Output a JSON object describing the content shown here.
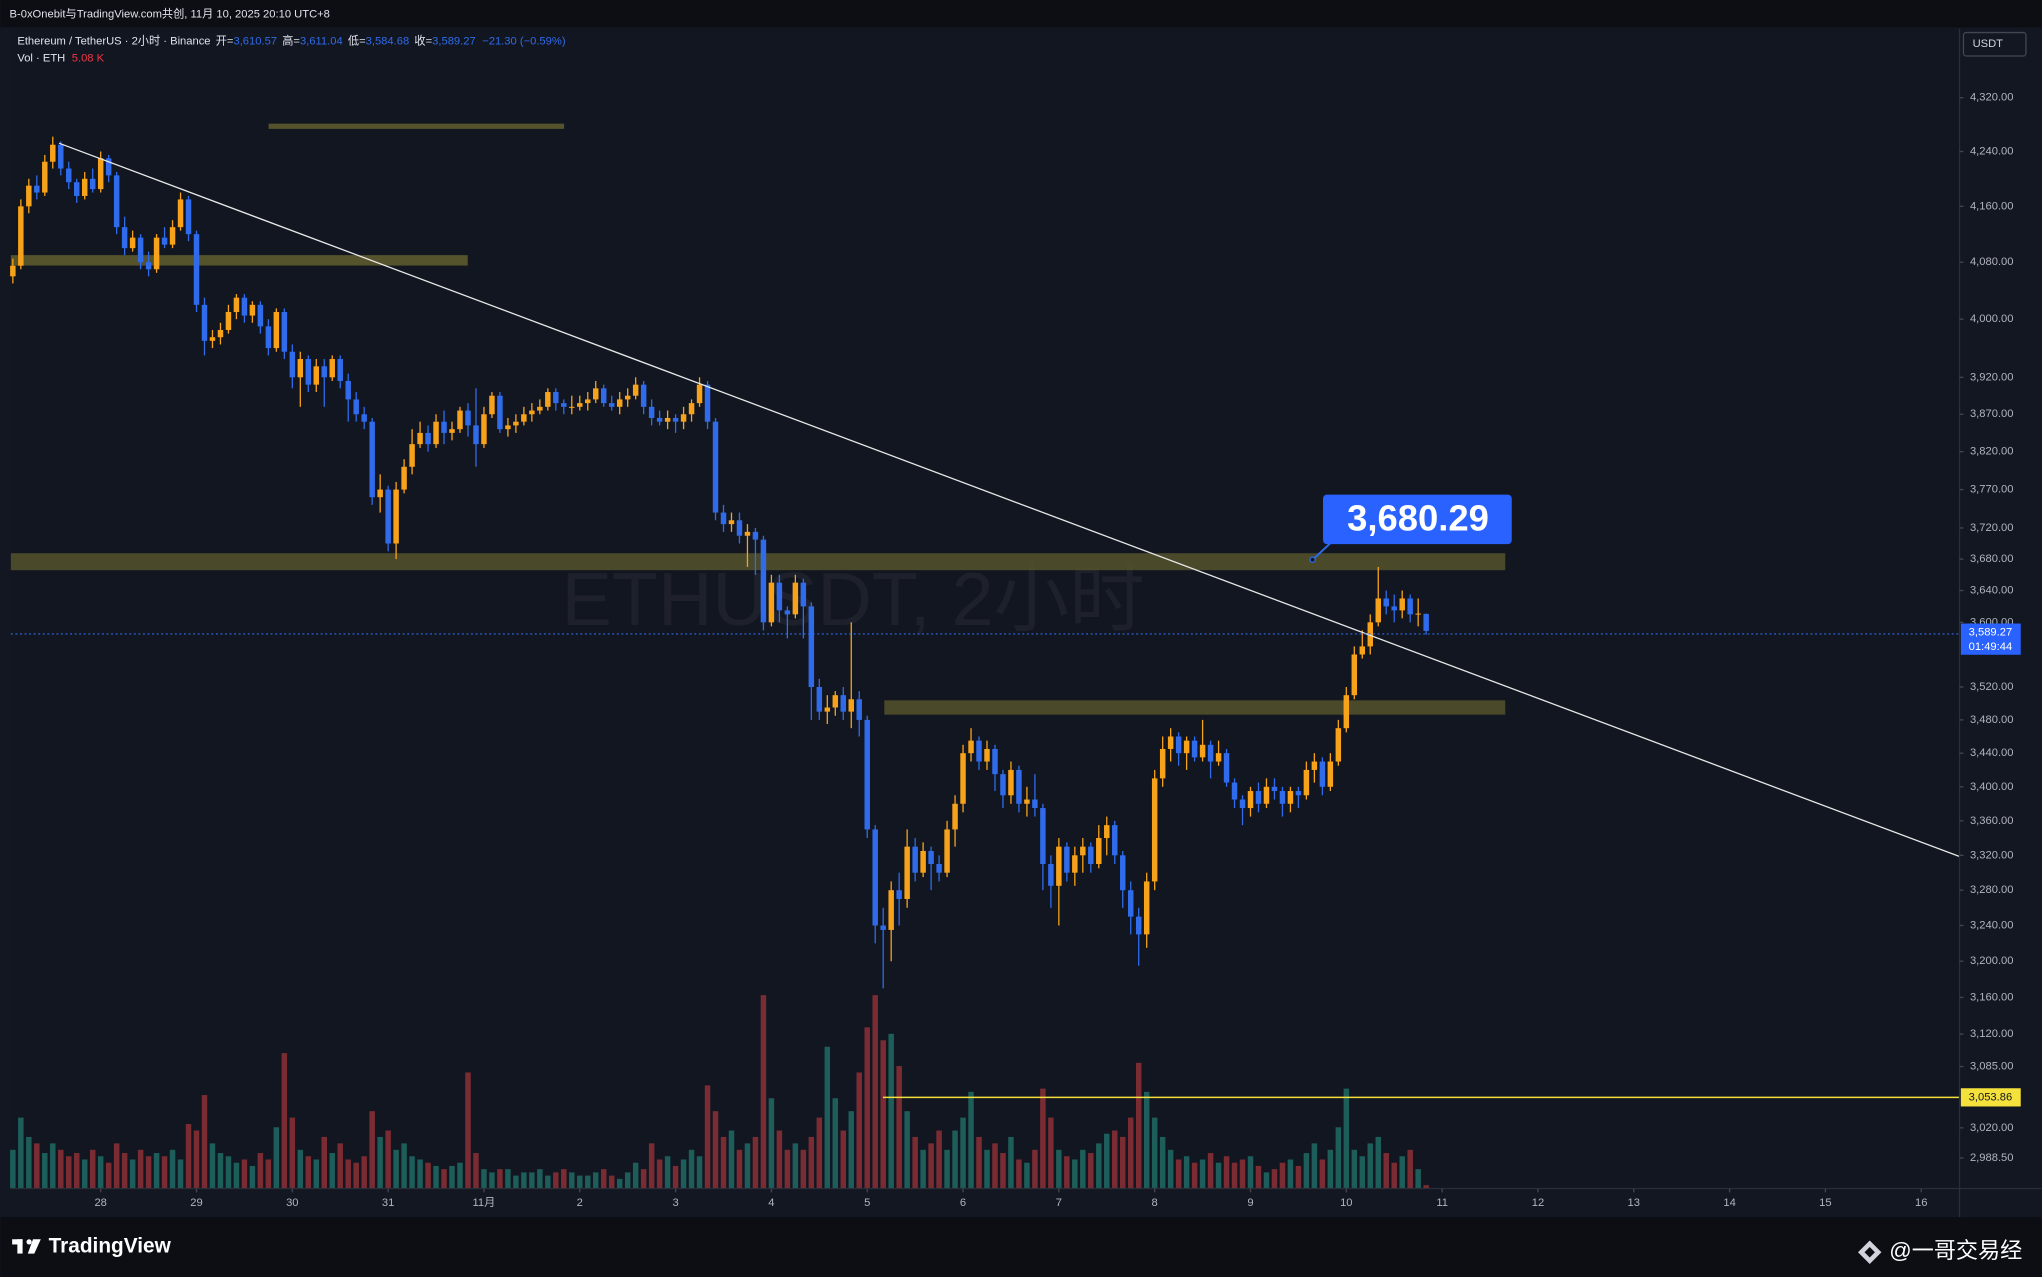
{
  "header": {
    "title": "B-0xOnebit与TradingView.com共创, 11月 10, 2025 20:10 UTC+8"
  },
  "legend": {
    "symbol": "Ethereum / TetherUS · 2小时 · Binance",
    "ohlc": [
      {
        "label": "开=",
        "value": "3,610.57"
      },
      {
        "label": "高=",
        "value": "3,611.04"
      },
      {
        "label": "低=",
        "value": "3,584.68"
      },
      {
        "label": "收=",
        "value": "3,589.27"
      }
    ],
    "change": "−21.30 (−0.59%)",
    "volume_label": "Vol · ETH",
    "volume_value": "5.08 K"
  },
  "annotations": {
    "callout": "3,680.29",
    "line_label": "3,053.86",
    "last_price": "3,589.27",
    "countdown": "01:49:44",
    "currency": "USDT",
    "watermark": "ETHUSDT, 2小时"
  },
  "footer": {
    "brand": "TradingView",
    "author": "@一哥交易经"
  },
  "chart_data": {
    "type": "candlestick",
    "log_scale": true,
    "up_color": "#f7a21b",
    "down_color": "#2f6bea",
    "volume_up_color": "#1d5e5a",
    "volume_down_color": "#7b2c33",
    "xlim": [
      625.5,
      1113.6
    ],
    "xticks": [
      {
        "value": 648,
        "label": "28"
      },
      {
        "value": 672,
        "label": "29"
      },
      {
        "value": 696,
        "label": "30"
      },
      {
        "value": 720,
        "label": "31"
      },
      {
        "value": 744,
        "label": "11月"
      },
      {
        "value": 768,
        "label": "2"
      },
      {
        "value": 792,
        "label": "3"
      },
      {
        "value": 816,
        "label": "4"
      },
      {
        "value": 840,
        "label": "5"
      },
      {
        "value": 864,
        "label": "6"
      },
      {
        "value": 888,
        "label": "7"
      },
      {
        "value": 912,
        "label": "8"
      },
      {
        "value": 936,
        "label": "9"
      },
      {
        "value": 960,
        "label": "10"
      },
      {
        "value": 984,
        "label": "11"
      },
      {
        "value": 1008,
        "label": "12"
      },
      {
        "value": 1032,
        "label": "13"
      },
      {
        "value": 1056,
        "label": "14"
      },
      {
        "value": 1080,
        "label": "15"
      },
      {
        "value": 1104,
        "label": "16"
      }
    ],
    "ylim": [
      2957,
      4425
    ],
    "yticks": [
      {
        "value": 4320,
        "label": "4,320.00"
      },
      {
        "value": 4240,
        "label": "4,240.00"
      },
      {
        "value": 4160,
        "label": "4,160.00"
      },
      {
        "value": 4080,
        "label": "4,080.00"
      },
      {
        "value": 4000,
        "label": "4,000.00"
      },
      {
        "value": 3920,
        "label": "3,920.00"
      },
      {
        "value": 3870,
        "label": "3,870.00"
      },
      {
        "value": 3820,
        "label": "3,820.00"
      },
      {
        "value": 3770,
        "label": "3,770.00"
      },
      {
        "value": 3720,
        "label": "3,720.00"
      },
      {
        "value": 3680,
        "label": "3,680.00"
      },
      {
        "value": 3640,
        "label": "3,640.00"
      },
      {
        "value": 3600,
        "label": "3,600.00"
      },
      {
        "value": 3520,
        "label": "3,520.00"
      },
      {
        "value": 3480,
        "label": "3,480.00"
      },
      {
        "value": 3440,
        "label": "3,440.00"
      },
      {
        "value": 3400,
        "label": "3,400.00"
      },
      {
        "value": 3360,
        "label": "3,360.00"
      },
      {
        "value": 3320,
        "label": "3,320.00"
      },
      {
        "value": 3280,
        "label": "3,280.00"
      },
      {
        "value": 3240,
        "label": "3,240.00"
      },
      {
        "value": 3200,
        "label": "3,200.00"
      },
      {
        "value": 3160,
        "label": "3,160.00"
      },
      {
        "value": 3120,
        "label": "3,120.00"
      },
      {
        "value": 3085,
        "label": "3,085.00"
      },
      {
        "value": 3020,
        "label": "3,020.00"
      },
      {
        "value": 2988.5,
        "label": "2,988.50"
      }
    ],
    "volume_ylim": [
      0,
      1800
    ],
    "x": [
      626,
      628,
      630,
      632,
      634,
      636,
      638,
      640,
      642,
      644,
      646,
      648,
      650,
      652,
      654,
      656,
      658,
      660,
      662,
      664,
      666,
      668,
      670,
      672,
      674,
      676,
      678,
      680,
      682,
      684,
      686,
      688,
      690,
      692,
      694,
      696,
      698,
      700,
      702,
      704,
      706,
      708,
      710,
      712,
      714,
      716,
      718,
      720,
      722,
      724,
      726,
      728,
      730,
      732,
      734,
      736,
      738,
      740,
      742,
      744,
      746,
      748,
      750,
      752,
      754,
      756,
      758,
      760,
      762,
      764,
      766,
      768,
      770,
      772,
      774,
      776,
      778,
      780,
      782,
      784,
      786,
      788,
      790,
      792,
      794,
      796,
      798,
      800,
      802,
      804,
      806,
      808,
      810,
      812,
      814,
      816,
      818,
      820,
      822,
      824,
      826,
      828,
      830,
      832,
      834,
      836,
      838,
      840,
      842,
      844,
      846,
      848,
      850,
      852,
      854,
      856,
      858,
      860,
      862,
      864,
      866,
      868,
      870,
      872,
      874,
      876,
      878,
      880,
      882,
      884,
      886,
      888,
      890,
      892,
      894,
      896,
      898,
      900,
      902,
      904,
      906,
      908,
      910,
      912,
      914,
      916,
      918,
      920,
      922,
      924,
      926,
      928,
      930,
      932,
      934,
      936,
      938,
      940,
      942,
      944,
      946,
      948,
      950,
      952,
      954,
      956,
      958,
      960,
      962,
      964,
      966,
      968,
      970,
      972,
      974,
      976,
      978,
      980
    ],
    "open": [
      4060,
      4075,
      4160,
      4190,
      4180,
      4225,
      4250,
      4215,
      4195,
      4175,
      4200,
      4185,
      4230,
      4205,
      4130,
      4100,
      4115,
      4080,
      4070,
      4115,
      4105,
      4130,
      4170,
      4120,
      4020,
      3970,
      3975,
      3985,
      4010,
      4030,
      4005,
      4020,
      3990,
      3960,
      4010,
      3955,
      3920,
      3945,
      3910,
      3935,
      3920,
      3945,
      3915,
      3890,
      3870,
      3860,
      3760,
      3770,
      3700,
      3770,
      3800,
      3830,
      3845,
      3830,
      3860,
      3845,
      3850,
      3875,
      3855,
      3830,
      3870,
      3895,
      3850,
      3855,
      3860,
      3870,
      3875,
      3880,
      3900,
      3885,
      3880,
      3880,
      3885,
      3890,
      3905,
      3885,
      3880,
      3890,
      3895,
      3910,
      3880,
      3865,
      3860,
      3865,
      3860,
      3870,
      3885,
      3910,
      3860,
      3740,
      3725,
      3730,
      3710,
      3715,
      3705,
      3600,
      3650,
      3615,
      3610,
      3650,
      3620,
      3520,
      3490,
      3495,
      3510,
      3490,
      3505,
      3480,
      3350,
      3240,
      3235,
      3280,
      3270,
      3330,
      3300,
      3325,
      3310,
      3300,
      3350,
      3380,
      3440,
      3455,
      3430,
      3445,
      3415,
      3390,
      3420,
      3380,
      3385,
      3375,
      3310,
      3285,
      3330,
      3300,
      3320,
      3330,
      3310,
      3340,
      3355,
      3320,
      3280,
      3250,
      3230,
      3290,
      3410,
      3445,
      3460,
      3440,
      3455,
      3435,
      3450,
      3430,
      3440,
      3405,
      3385,
      3375,
      3395,
      3380,
      3400,
      3395,
      3380,
      3395,
      3390,
      3420,
      3430,
      3400,
      3430,
      3470,
      3510,
      3560,
      3570,
      3600,
      3630,
      3620,
      3615,
      3630,
      3610,
      3610.57
    ],
    "high": [
      4085,
      4170,
      4200,
      4205,
      4235,
      4262,
      4255,
      4225,
      4200,
      4210,
      4215,
      4240,
      4235,
      4210,
      4145,
      4125,
      4120,
      4095,
      4120,
      4130,
      4140,
      4180,
      4175,
      4125,
      4030,
      3985,
      3995,
      4020,
      4035,
      4035,
      4025,
      4025,
      4000,
      4015,
      4015,
      3965,
      3955,
      3950,
      3945,
      3945,
      3950,
      3950,
      3925,
      3900,
      3880,
      3865,
      3790,
      3775,
      3780,
      3810,
      3850,
      3860,
      3855,
      3870,
      3875,
      3860,
      3880,
      3885,
      3905,
      3880,
      3900,
      3900,
      3865,
      3870,
      3880,
      3885,
      3890,
      3905,
      3905,
      3890,
      3895,
      3895,
      3900,
      3915,
      3910,
      3895,
      3900,
      3905,
      3920,
      3915,
      3890,
      3875,
      3875,
      3870,
      3880,
      3890,
      3920,
      3915,
      3865,
      3750,
      3740,
      3740,
      3725,
      3720,
      3710,
      3660,
      3660,
      3620,
      3660,
      3655,
      3625,
      3530,
      3510,
      3515,
      3520,
      3600,
      3515,
      3485,
      3355,
      3260,
      3290,
      3300,
      3350,
      3340,
      3335,
      3330,
      3320,
      3360,
      3390,
      3450,
      3470,
      3460,
      3455,
      3450,
      3420,
      3430,
      3425,
      3400,
      3415,
      3380,
      3320,
      3340,
      3335,
      3330,
      3340,
      3335,
      3355,
      3365,
      3360,
      3325,
      3290,
      3260,
      3300,
      3420,
      3460,
      3470,
      3465,
      3460,
      3460,
      3480,
      3455,
      3455,
      3445,
      3410,
      3390,
      3400,
      3405,
      3410,
      3410,
      3400,
      3400,
      3400,
      3430,
      3440,
      3435,
      3440,
      3480,
      3520,
      3570,
      3590,
      3610,
      3670,
      3640,
      3635,
      3640,
      3635,
      3630,
      3611.04
    ],
    "low": [
      4050,
      4070,
      4150,
      4170,
      4175,
      4215,
      4205,
      4185,
      4165,
      4170,
      4180,
      4180,
      4195,
      4120,
      4090,
      4095,
      4070,
      4060,
      4065,
      4100,
      4100,
      4125,
      4110,
      4010,
      3950,
      3960,
      3965,
      3980,
      4000,
      3995,
      3995,
      3980,
      3950,
      3955,
      3945,
      3905,
      3880,
      3900,
      3900,
      3880,
      3915,
      3905,
      3860,
      3860,
      3850,
      3750,
      3740,
      3690,
      3680,
      3765,
      3790,
      3825,
      3820,
      3825,
      3830,
      3835,
      3845,
      3840,
      3800,
      3825,
      3865,
      3845,
      3840,
      3845,
      3855,
      3860,
      3870,
      3875,
      3875,
      3870,
      3870,
      3875,
      3875,
      3885,
      3880,
      3875,
      3870,
      3880,
      3890,
      3870,
      3855,
      3855,
      3850,
      3845,
      3850,
      3860,
      3880,
      3850,
      3730,
      3715,
      3715,
      3700,
      3670,
      3660,
      3590,
      3595,
      3600,
      3580,
      3605,
      3580,
      3480,
      3480,
      3475,
      3485,
      3480,
      3470,
      3460,
      3340,
      3220,
      3170,
      3200,
      3240,
      3260,
      3290,
      3295,
      3280,
      3290,
      3295,
      3330,
      3370,
      3430,
      3420,
      3420,
      3395,
      3375,
      3380,
      3370,
      3365,
      3365,
      3280,
      3260,
      3240,
      3290,
      3285,
      3300,
      3300,
      3305,
      3320,
      3310,
      3260,
      3230,
      3195,
      3215,
      3280,
      3400,
      3430,
      3425,
      3420,
      3430,
      3430,
      3410,
      3425,
      3400,
      3375,
      3355,
      3365,
      3370,
      3375,
      3385,
      3365,
      3370,
      3375,
      3385,
      3405,
      3390,
      3395,
      3425,
      3465,
      3505,
      3555,
      3560,
      3595,
      3610,
      3600,
      3605,
      3600,
      3595,
      3584.68
    ],
    "close": [
      4075,
      4160,
      4190,
      4180,
      4225,
      4250,
      4215,
      4195,
      4175,
      4200,
      4185,
      4230,
      4205,
      4130,
      4100,
      4115,
      4080,
      4070,
      4115,
      4105,
      4130,
      4170,
      4120,
      4020,
      3970,
      3975,
      3985,
      4010,
      4030,
      4005,
      4020,
      3990,
      3960,
      4010,
      3955,
      3920,
      3945,
      3910,
      3935,
      3920,
      3945,
      3915,
      3890,
      3870,
      3860,
      3760,
      3770,
      3700,
      3770,
      3800,
      3830,
      3845,
      3830,
      3860,
      3845,
      3850,
      3875,
      3855,
      3830,
      3870,
      3895,
      3850,
      3855,
      3860,
      3870,
      3875,
      3880,
      3900,
      3885,
      3880,
      3880,
      3885,
      3890,
      3905,
      3885,
      3880,
      3890,
      3895,
      3910,
      3880,
      3865,
      3860,
      3865,
      3860,
      3870,
      3885,
      3910,
      3860,
      3740,
      3725,
      3730,
      3710,
      3715,
      3705,
      3600,
      3650,
      3615,
      3610,
      3650,
      3620,
      3520,
      3490,
      3495,
      3510,
      3490,
      3505,
      3480,
      3350,
      3240,
      3235,
      3280,
      3270,
      3330,
      3300,
      3325,
      3310,
      3300,
      3350,
      3380,
      3440,
      3455,
      3430,
      3445,
      3415,
      3390,
      3420,
      3380,
      3385,
      3375,
      3310,
      3285,
      3330,
      3300,
      3320,
      3330,
      3310,
      3340,
      3355,
      3320,
      3280,
      3250,
      3230,
      3290,
      3410,
      3445,
      3460,
      3440,
      3455,
      3435,
      3450,
      3430,
      3440,
      3405,
      3385,
      3375,
      3395,
      3380,
      3400,
      3395,
      3380,
      3395,
      3390,
      3420,
      3430,
      3400,
      3430,
      3470,
      3510,
      3560,
      3570,
      3600,
      3630,
      3620,
      3615,
      3630,
      3610,
      3611,
      3589.27
    ],
    "volume": [
      60,
      110,
      80,
      70,
      55,
      70,
      60,
      50,
      55,
      45,
      60,
      50,
      40,
      70,
      55,
      45,
      60,
      50,
      55,
      50,
      60,
      45,
      100,
      90,
      145,
      70,
      55,
      50,
      40,
      45,
      35,
      55,
      45,
      95,
      210,
      110,
      60,
      50,
      45,
      80,
      55,
      70,
      45,
      40,
      50,
      120,
      80,
      90,
      60,
      70,
      50,
      45,
      40,
      35,
      30,
      35,
      40,
      180,
      55,
      30,
      25,
      30,
      30,
      20,
      25,
      25,
      30,
      20,
      25,
      30,
      25,
      20,
      20,
      25,
      30,
      20,
      15,
      25,
      40,
      30,
      70,
      45,
      50,
      35,
      45,
      60,
      50,
      160,
      120,
      80,
      90,
      60,
      70,
      80,
      300,
      140,
      90,
      60,
      70,
      60,
      80,
      110,
      220,
      140,
      90,
      120,
      180,
      250,
      300,
      230,
      240,
      190,
      120,
      80,
      60,
      70,
      90,
      60,
      90,
      110,
      150,
      80,
      60,
      70,
      55,
      80,
      45,
      40,
      60,
      155,
      110,
      60,
      50,
      45,
      60,
      55,
      70,
      85,
      90,
      80,
      110,
      195,
      150,
      110,
      80,
      60,
      45,
      50,
      40,
      45,
      55,
      40,
      50,
      40,
      45,
      50,
      35,
      25,
      30,
      40,
      45,
      35,
      55,
      70,
      45,
      60,
      95,
      155,
      60,
      50,
      70,
      80,
      55,
      40,
      50,
      60,
      30,
      5.08
    ]
  }
}
